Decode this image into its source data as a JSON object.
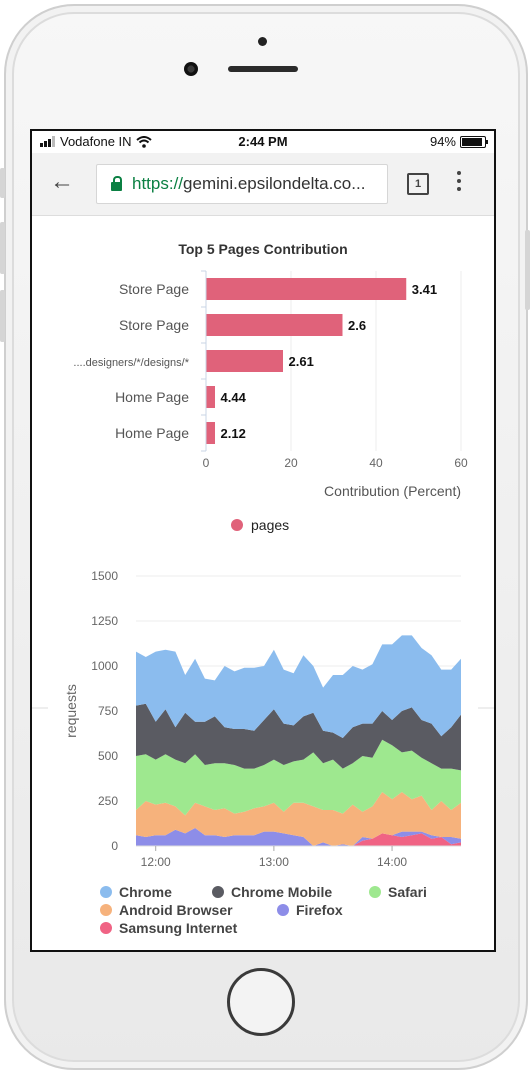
{
  "status": {
    "carrier": "Vodafone IN",
    "time": "2:44 PM",
    "battery": "94%"
  },
  "browser": {
    "url_scheme": "https://",
    "url_rest": "gemini.epsilondelta.co...",
    "tab_count": "1"
  },
  "chart_data": [
    {
      "type": "bar",
      "orientation": "horizontal",
      "title": "Top 5 Pages Contribution",
      "xlabel": "Contribution (Percent)",
      "categories": [
        "Store Page",
        "Store Page",
        "....designers/*/designs/*",
        "Home Page",
        "Home Page"
      ],
      "values": [
        47,
        32,
        18,
        2,
        2
      ],
      "value_labels": [
        "3.41",
        "2.6",
        "2.61",
        "4.44",
        "2.12"
      ],
      "xlim": [
        0,
        60
      ],
      "xticks": [
        "0",
        "20",
        "40",
        "60"
      ],
      "legend": [
        "pages"
      ],
      "colors": {
        "pages": "#e0627a"
      },
      "grid": true
    },
    {
      "type": "area",
      "stacked": true,
      "ylabel": "requests",
      "ylim": [
        0,
        1500
      ],
      "yticks": [
        "0",
        "250",
        "500",
        "750",
        "1000",
        "1250",
        "1500"
      ],
      "xticks": [
        "12:00",
        "13:00",
        "14:00"
      ],
      "x": [
        "11:50",
        "11:55",
        "12:00",
        "12:05",
        "12:10",
        "12:15",
        "12:20",
        "12:25",
        "12:30",
        "12:35",
        "12:40",
        "12:45",
        "12:50",
        "12:55",
        "13:00",
        "13:05",
        "13:10",
        "13:15",
        "13:20",
        "13:25",
        "13:30",
        "13:35",
        "13:40",
        "13:45",
        "13:50",
        "13:55",
        "14:00",
        "14:05",
        "14:10",
        "14:15",
        "14:20",
        "14:25",
        "14:30",
        "14:35"
      ],
      "series": [
        {
          "name": "Samsung Internet",
          "color": "#f06384",
          "values": [
            0,
            0,
            0,
            0,
            0,
            0,
            0,
            0,
            0,
            0,
            0,
            0,
            0,
            0,
            0,
            0,
            0,
            0,
            0,
            0,
            0,
            0,
            0,
            30,
            40,
            70,
            60,
            50,
            60,
            70,
            40,
            50,
            10,
            20
          ]
        },
        {
          "name": "Firefox",
          "color": "#8d8de8",
          "values": [
            60,
            50,
            60,
            60,
            90,
            70,
            100,
            60,
            60,
            50,
            60,
            60,
            60,
            80,
            80,
            70,
            60,
            50,
            0,
            20,
            0,
            10,
            0,
            20,
            0,
            0,
            0,
            30,
            20,
            10,
            20,
            0,
            40,
            20
          ]
        },
        {
          "name": "Android Browser",
          "color": "#f6b27c",
          "values": [
            140,
            200,
            170,
            180,
            130,
            100,
            140,
            160,
            140,
            160,
            120,
            130,
            150,
            140,
            160,
            120,
            180,
            190,
            220,
            180,
            200,
            170,
            230,
            140,
            180,
            230,
            200,
            220,
            180,
            200,
            140,
            200,
            150,
            200
          ]
        },
        {
          "name": "Safari",
          "color": "#9ee88f",
          "values": [
            300,
            260,
            250,
            270,
            260,
            290,
            270,
            230,
            260,
            250,
            270,
            240,
            220,
            230,
            240,
            260,
            230,
            240,
            300,
            260,
            280,
            250,
            230,
            310,
            270,
            290,
            300,
            220,
            270,
            210,
            260,
            180,
            230,
            180
          ]
        },
        {
          "name": "Chrome Mobile",
          "color": "#5a5b62",
          "values": [
            280,
            280,
            210,
            250,
            180,
            280,
            180,
            240,
            260,
            200,
            200,
            220,
            210,
            250,
            280,
            230,
            200,
            240,
            220,
            180,
            150,
            170,
            200,
            180,
            190,
            160,
            140,
            230,
            240,
            210,
            220,
            180,
            230,
            310
          ]
        },
        {
          "name": "Chrome",
          "color": "#8bbcee",
          "values": [
            300,
            260,
            390,
            330,
            420,
            210,
            350,
            240,
            200,
            340,
            320,
            340,
            350,
            300,
            330,
            300,
            290,
            340,
            260,
            240,
            320,
            350,
            340,
            300,
            330,
            370,
            420,
            420,
            400,
            400,
            380,
            370,
            320,
            310
          ]
        }
      ],
      "legend": [
        "Chrome",
        "Chrome Mobile",
        "Safari",
        "Android Browser",
        "Firefox",
        "Samsung Internet"
      ]
    }
  ]
}
